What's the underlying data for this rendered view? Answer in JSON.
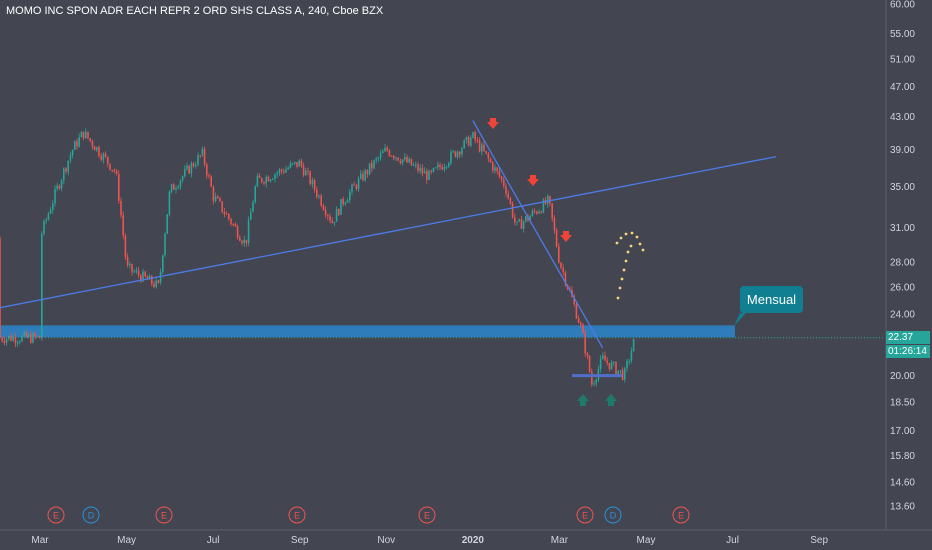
{
  "header": {
    "title": "MOMO INC SPON ADR EACH REPR 2 ORD SHS CLASS A, 240, Cboe BZX"
  },
  "chart_data": {
    "type": "candlestick",
    "y_axis": {
      "scale": "log",
      "ticks": [
        "60.00",
        "55.00",
        "51.00",
        "47.00",
        "43.00",
        "39.00",
        "35.00",
        "31.00",
        "28.00",
        "26.00",
        "24.00",
        "20.00",
        "18.50",
        "17.00",
        "15.80",
        "14.60",
        "13.60"
      ],
      "range": [
        13.0,
        61.0
      ]
    },
    "x_axis": {
      "ticks": [
        "Mar",
        "May",
        "Jul",
        "Sep",
        "Nov",
        "2020",
        "Mar",
        "May",
        "Jul",
        "Sep"
      ]
    },
    "price_path_approx": [
      {
        "t": "Mar 2019",
        "close": 30.0
      },
      {
        "t": "Mar 2019 (late)",
        "close": 39.0
      },
      {
        "t": "Apr 2019",
        "close": 41.0
      },
      {
        "t": "Apr 2019 (late)",
        "close": 36.5
      },
      {
        "t": "May 2019",
        "close": 27.5
      },
      {
        "t": "May 2019 (late)",
        "close": 26.0
      },
      {
        "t": "Jun 2019",
        "close": 34.5
      },
      {
        "t": "Jun 2019 (late)",
        "close": 38.5
      },
      {
        "t": "Jul 2019",
        "close": 34.0
      },
      {
        "t": "Jul 2019 (late)",
        "close": 29.5
      },
      {
        "t": "Aug 2019",
        "close": 35.5
      },
      {
        "t": "Sep 2019",
        "close": 37.5
      },
      {
        "t": "Sep 2019 (late)",
        "close": 31.5
      },
      {
        "t": "Oct 2019",
        "close": 33.5
      },
      {
        "t": "Nov 2019",
        "close": 39.0
      },
      {
        "t": "Dec 2019",
        "close": 36.0
      },
      {
        "t": "Jan 2020",
        "close": 40.5
      },
      {
        "t": "Jan 2020 (late)",
        "close": 35.0
      },
      {
        "t": "Feb 2020",
        "close": 31.0
      },
      {
        "t": "Feb 2020 (late)",
        "close": 33.5
      },
      {
        "t": "Mar 2020",
        "close": 28.0
      },
      {
        "t": "Mar 2020 (mid)",
        "close": 23.0
      },
      {
        "t": "Mar 2020 (late)",
        "close": 19.5
      },
      {
        "t": "Apr 2020",
        "close": 21.0
      },
      {
        "t": "Apr 2020 (mid)",
        "close": 20.0
      },
      {
        "t": "Apr 2020 (late)",
        "close": 22.37
      }
    ],
    "trendlines": [
      {
        "name": "rising support line",
        "from": {
          "t": "Jan 2019",
          "price": 23.8
        },
        "to": {
          "t": "Aug 2020",
          "price": 38.2
        }
      },
      {
        "name": "falling resistance line",
        "from": {
          "t": "Jan 2020",
          "price": 42.5
        },
        "to": {
          "t": "Apr 2020",
          "price": 21.7
        }
      }
    ],
    "horizontal_zone": {
      "price_low": 22.4,
      "price_high": 23.2,
      "color": "#2e7fc1"
    },
    "support_line": {
      "price": 20.0
    },
    "markers": {
      "down_arrows": 3,
      "up_arrows": 2,
      "down_arrow_color": "#f0443a",
      "up_arrow_color": "#1f7a6b"
    },
    "projection_dots_color": "#f6d57a",
    "events": [
      {
        "label": "E",
        "kind": "earnings"
      },
      {
        "label": "D",
        "kind": "dividend"
      },
      {
        "label": "E",
        "kind": "earnings"
      },
      {
        "label": "E",
        "kind": "earnings"
      },
      {
        "label": "E",
        "kind": "earnings"
      },
      {
        "label": "E",
        "kind": "earnings"
      },
      {
        "label": "D",
        "kind": "dividend"
      },
      {
        "label": "E",
        "kind": "earnings"
      }
    ],
    "last_price": "22.37",
    "countdown": "01:26:14",
    "annotation": "Mensual",
    "colors": {
      "background": "#434651",
      "up": "#26a69a",
      "down": "#ef5350",
      "trendline": "#4c7be6",
      "earnings": "#ef5350",
      "dividend": "#2a8fd8"
    }
  }
}
